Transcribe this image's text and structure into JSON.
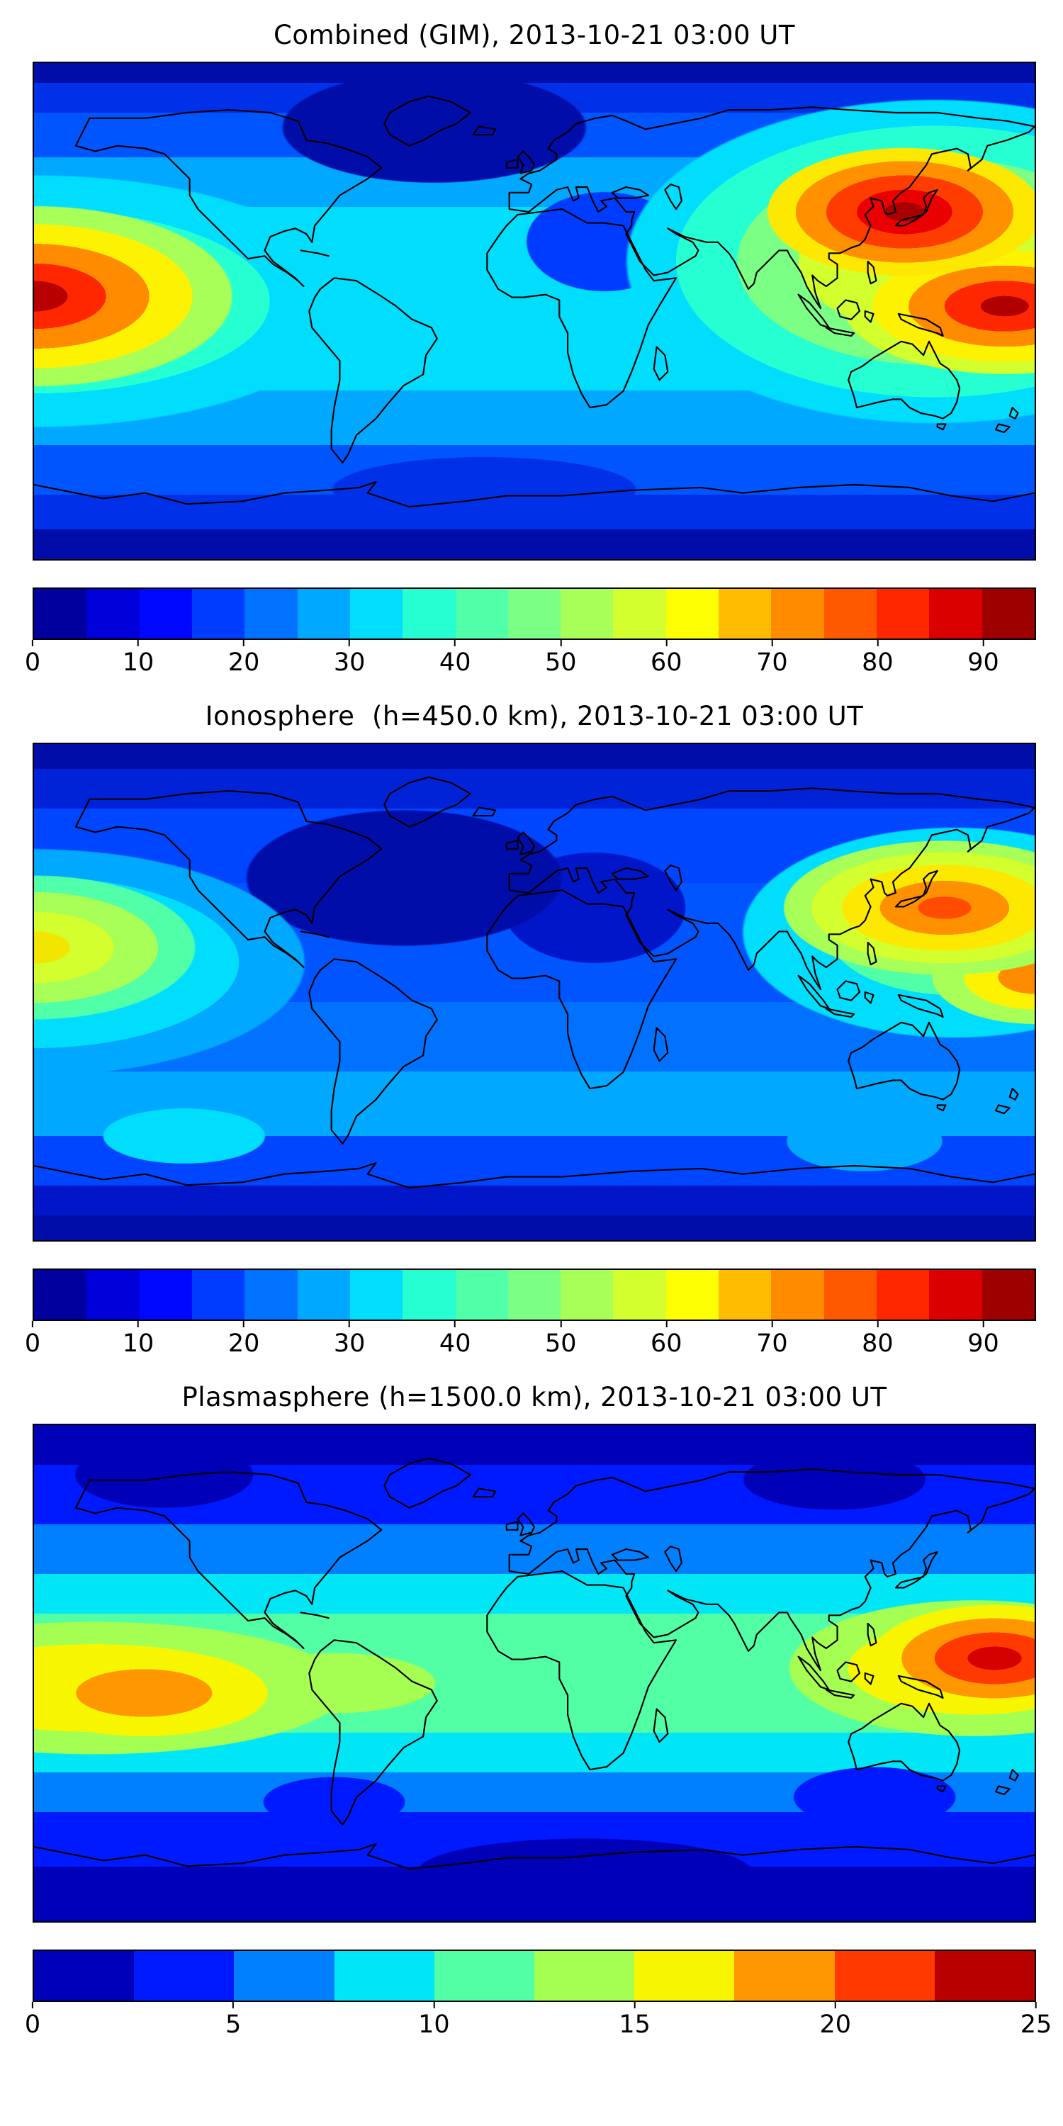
{
  "figure": {
    "panels": [
      {
        "title": "Combined (GIM), 2013-10-21 03:00 UT",
        "colorbar": {
          "min": 0,
          "max": 95,
          "ticks": [
            {
              "value": 0,
              "label": "0"
            },
            {
              "value": 10,
              "label": "10"
            },
            {
              "value": 20,
              "label": "20"
            },
            {
              "value": 30,
              "label": "30"
            },
            {
              "value": 40,
              "label": "40"
            },
            {
              "value": 50,
              "label": "50"
            },
            {
              "value": 60,
              "label": "60"
            },
            {
              "value": 70,
              "label": "70"
            },
            {
              "value": 80,
              "label": "80"
            },
            {
              "value": 90,
              "label": "90"
            }
          ],
          "colors": [
            "#00009E",
            "#0000DB",
            "#0007FF",
            "#003CFF",
            "#0072FF",
            "#00A8FF",
            "#00DDFD",
            "#25FFD2",
            "#50FFA7",
            "#7BFF84",
            "#A7FF58",
            "#D2FF2D",
            "#FDFF02",
            "#FFBC00",
            "#FF8B00",
            "#FF5900",
            "#FF2700",
            "#DB0000",
            "#9E0000"
          ]
        }
      },
      {
        "title": "Ionosphere  (h=450.0 km), 2013-10-21 03:00 UT",
        "colorbar": {
          "min": 0,
          "max": 95,
          "ticks": [
            {
              "value": 0,
              "label": "0"
            },
            {
              "value": 10,
              "label": "10"
            },
            {
              "value": 20,
              "label": "20"
            },
            {
              "value": 30,
              "label": "30"
            },
            {
              "value": 40,
              "label": "40"
            },
            {
              "value": 50,
              "label": "50"
            },
            {
              "value": 60,
              "label": "60"
            },
            {
              "value": 70,
              "label": "70"
            },
            {
              "value": 80,
              "label": "80"
            },
            {
              "value": 90,
              "label": "90"
            }
          ],
          "colors": [
            "#00009E",
            "#0000DB",
            "#0007FF",
            "#003CFF",
            "#0072FF",
            "#00A8FF",
            "#00DDFD",
            "#25FFD2",
            "#50FFA7",
            "#7BFF84",
            "#A7FF58",
            "#D2FF2D",
            "#FDFF02",
            "#FFBC00",
            "#FF8B00",
            "#FF5900",
            "#FF2700",
            "#DB0000",
            "#9E0000"
          ]
        }
      },
      {
        "title": "Plasmasphere (h=1500.0 km), 2013-10-21 03:00 UT",
        "colorbar": {
          "min": 0,
          "max": 25,
          "ticks": [
            {
              "value": 0,
              "label": "0"
            },
            {
              "value": 5,
              "label": "5"
            },
            {
              "value": 10,
              "label": "10"
            },
            {
              "value": 15,
              "label": "15"
            },
            {
              "value": 20,
              "label": "20"
            },
            {
              "value": 25,
              "label": "25"
            }
          ],
          "colors": [
            "#0000B9",
            "#001AFF",
            "#0080FF",
            "#00E6F7",
            "#52FFA5",
            "#A5FF52",
            "#F7F600",
            "#FF9700",
            "#FF3900",
            "#B90000"
          ]
        }
      }
    ]
  },
  "chart_data": [
    {
      "type": "heatmap",
      "variant": "filled_contour_world_map",
      "title": "Combined (GIM), 2013-10-21 03:00 UT",
      "datetime_ut": "2013-10-21 03:00",
      "projection": "equirectangular",
      "xlim": [
        -180,
        180
      ],
      "ylim": [
        -90,
        90
      ],
      "colormap": "jet",
      "levels_min": 0,
      "levels_max": 95,
      "level_step": 5,
      "colorbar_ticks": [
        0,
        10,
        20,
        30,
        40,
        50,
        60,
        70,
        80,
        90
      ],
      "features": [
        {
          "label": "primary maximum over western Pacific / SE Asia / north of Australia",
          "lon": 140,
          "lat": 12,
          "approx_max": 95
        },
        {
          "label": "secondary maximum at western map edge (central Pacific)",
          "lon": -178,
          "lat": 5,
          "approx_max": 90
        },
        {
          "label": "broad cyan/green equatorial band",
          "approx_value": 40
        },
        {
          "label": "minimum over high latitudes and North Atlantic",
          "approx_min": 5
        }
      ]
    },
    {
      "type": "heatmap",
      "variant": "filled_contour_world_map",
      "title": "Ionosphere  (h=450.0 km), 2013-10-21 03:00 UT",
      "datetime_ut": "2013-10-21 03:00",
      "height_km": 450.0,
      "projection": "equirectangular",
      "xlim": [
        -180,
        180
      ],
      "ylim": [
        -90,
        90
      ],
      "colormap": "jet",
      "levels_min": 0,
      "levels_max": 95,
      "level_step": 5,
      "colorbar_ticks": [
        0,
        10,
        20,
        30,
        40,
        50,
        60,
        70,
        80,
        90
      ],
      "features": [
        {
          "label": "maximum over western Pacific / Japan region",
          "lon": 145,
          "lat": 25,
          "approx_max": 85
        },
        {
          "label": "secondary yellow maximum at western map edge",
          "lon": -178,
          "lat": 12,
          "approx_max": 65
        },
        {
          "label": "dark night-side minimum over North America, Atlantic and Africa",
          "approx_min": 3
        }
      ]
    },
    {
      "type": "heatmap",
      "variant": "filled_contour_world_map",
      "title": "Plasmasphere (h=1500.0 km), 2013-10-21 03:00 UT",
      "datetime_ut": "2013-10-21 03:00",
      "height_km": 1500.0,
      "projection": "equirectangular",
      "xlim": [
        -180,
        180
      ],
      "ylim": [
        -90,
        90
      ],
      "colormap": "jet",
      "levels_min": 0,
      "levels_max": 25,
      "level_step": 2.5,
      "colorbar_ticks": [
        0,
        5,
        10,
        15,
        20,
        25
      ],
      "features": [
        {
          "label": "red maximum east of New Guinea",
          "lon": 165,
          "lat": 5,
          "approx_max": 24
        },
        {
          "label": "orange maximum over eastern Pacific",
          "lon": -140,
          "lat": -8,
          "approx_max": 21
        },
        {
          "label": "green equatorial belt",
          "approx_value": 11
        },
        {
          "label": "dark blue high-latitude minima",
          "approx_min": 2
        }
      ]
    }
  ]
}
